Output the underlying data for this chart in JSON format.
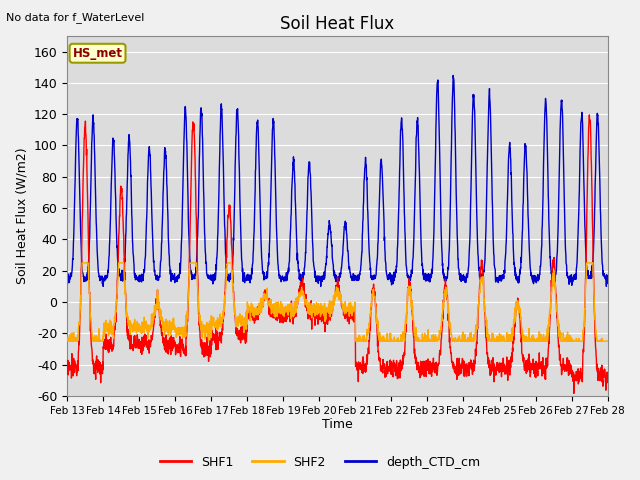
{
  "title": "Soil Heat Flux",
  "ylabel": "Soil Heat Flux (W/m2)",
  "xlabel": "Time",
  "no_data_text": "No data for f_WaterLevel",
  "hs_met_label": "HS_met",
  "ylim": [
    -60,
    170
  ],
  "yticks": [
    -60,
    -40,
    -20,
    0,
    20,
    40,
    60,
    80,
    100,
    120,
    140,
    160
  ],
  "xtick_labels": [
    "Feb 13",
    "Feb 14",
    "Feb 15",
    "Feb 16",
    "Feb 17",
    "Feb 18",
    "Feb 19",
    "Feb 20",
    "Feb 21",
    "Feb 22",
    "Feb 23",
    "Feb 24",
    "Feb 25",
    "Feb 26",
    "Feb 27",
    "Feb 28"
  ],
  "shf1_color": "#ff0000",
  "shf2_color": "#ffaa00",
  "depth_color": "#0000cc",
  "line_width": 1.0,
  "legend_series": [
    "SHF1",
    "SHF2",
    "depth_CTD_cm"
  ],
  "legend_colors": [
    "#ff0000",
    "#ffaa00",
    "#0000cc"
  ],
  "fig_bg": "#f0f0f0",
  "ax_bg": "#dcdcdc",
  "grid_color": "#ffffff"
}
